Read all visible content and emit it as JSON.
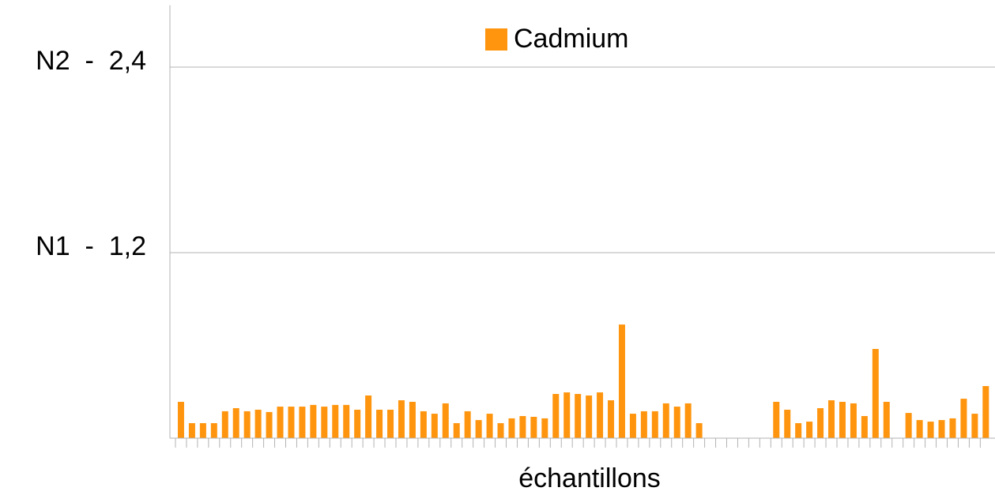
{
  "chart_data": {
    "type": "bar",
    "legend": "Cadmium",
    "x_label": "échantillons",
    "color": "#ff950e",
    "grid": true,
    "ylim": [
      0,
      2.8
    ],
    "yticks": [
      {
        "value": 1.2,
        "label": "N1  -  1,2"
      },
      {
        "value": 2.4,
        "label": "N2  -  2,4"
      }
    ],
    "categories": [
      null,
      null,
      null,
      null,
      null,
      null,
      null,
      null,
      null,
      null,
      null,
      null,
      null,
      null,
      null,
      null,
      null,
      null,
      null,
      null,
      null,
      null,
      null,
      null,
      null,
      null,
      null,
      null,
      null,
      null,
      null,
      null,
      null,
      null,
      null,
      null,
      null,
      null,
      null,
      null,
      null,
      null,
      null,
      null,
      null,
      null,
      null,
      null,
      null,
      null,
      null,
      null,
      null,
      null,
      null,
      null,
      null,
      null,
      null,
      null,
      null,
      null,
      null,
      null,
      null,
      null,
      null,
      null,
      null,
      null,
      null,
      null,
      null,
      null
    ],
    "values": [
      0.235,
      0.097,
      0.097,
      0.097,
      0.174,
      0.194,
      0.174,
      0.184,
      0.169,
      0.204,
      0.204,
      0.204,
      0.215,
      0.204,
      0.215,
      0.215,
      0.184,
      0.276,
      0.184,
      0.184,
      0.245,
      0.235,
      0.174,
      0.158,
      0.225,
      0.097,
      0.174,
      0.117,
      0.158,
      0.097,
      0.128,
      0.143,
      0.138,
      0.128,
      0.286,
      0.296,
      0.286,
      0.276,
      0.296,
      0.245,
      0.735,
      0.158,
      0.174,
      0.174,
      0.225,
      0.204,
      0.225,
      0.097,
      null,
      null,
      null,
      null,
      null,
      null,
      0.235,
      0.184,
      0.097,
      0.107,
      0.194,
      0.245,
      0.235,
      0.225,
      0.143,
      0.577,
      0.235,
      null,
      0.163,
      0.117,
      0.107,
      0.117,
      0.128,
      0.255,
      0.158,
      0.337
    ]
  }
}
